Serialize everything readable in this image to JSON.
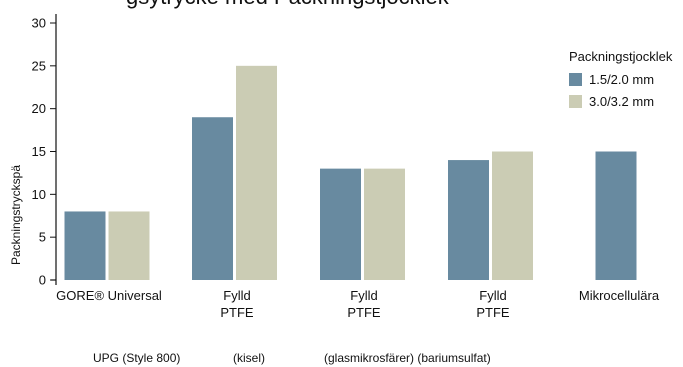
{
  "chart_data": {
    "type": "bar",
    "title_partial": "gsytrycke med Packningstjocklek",
    "ylabel": "Packningstryckspä",
    "ylim": [
      0,
      30
    ],
    "yticks": [
      0,
      5,
      10,
      15,
      20,
      25,
      30
    ],
    "categories": [
      [
        "GORE® Universal"
      ],
      [
        "Fylld",
        "PTFE"
      ],
      [
        "Fylld",
        "PTFE"
      ],
      [
        "Fylld",
        "PTFE"
      ],
      [
        "Mikrocellulära"
      ]
    ],
    "sublabels": [
      "UPG (Style 800)",
      "(kisel)",
      "(glasmikrosfärer) (bariumsulfat)"
    ],
    "legend_title": "Packningstjocklek",
    "legend_position": "right",
    "grid": false,
    "series": [
      {
        "name": "1.5/2.0 mm",
        "color": "#688aa0",
        "values": [
          8,
          19,
          13,
          14,
          15
        ]
      },
      {
        "name": "3.0/3.2 mm",
        "color": "#cbccb4",
        "values": [
          8,
          25,
          13,
          15,
          null
        ]
      }
    ]
  }
}
